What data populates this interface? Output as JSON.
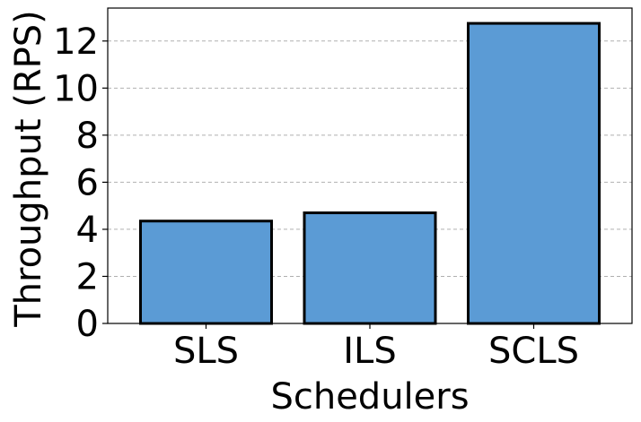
{
  "chart_data": {
    "type": "bar",
    "categories": [
      "SLS",
      "ILS",
      "SCLS"
    ],
    "values": [
      4.35,
      4.7,
      12.75
    ],
    "xlabel": "Schedulers",
    "ylabel": "Throughput (RPS)",
    "ylim": [
      0,
      13.4
    ],
    "yticks": [
      0,
      2,
      4,
      6,
      8,
      10,
      12
    ],
    "grid": {
      "axis": "y",
      "style": "dashed"
    },
    "colors": {
      "bar_fill": "#5b9bd5",
      "bar_edge": "#000000",
      "grid": "#b0b0b0"
    }
  }
}
